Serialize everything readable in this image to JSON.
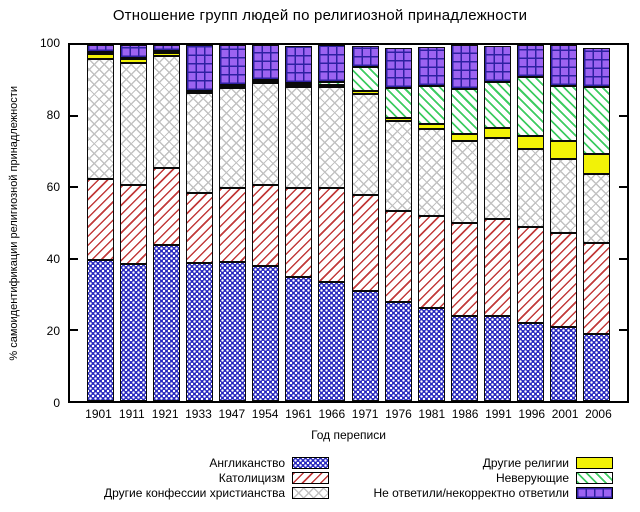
{
  "title": "Отношение групп людей по религиозной принадлежности",
  "y_axis": {
    "label": "% самоидентификации религиозной принадлежности",
    "ticks": [
      0,
      20,
      40,
      60,
      80,
      100
    ],
    "range": [
      0,
      100
    ]
  },
  "x_axis": {
    "label": "Год переписи"
  },
  "palette": {
    "anglican": {
      "fill": "#2626be",
      "accent": "#ffffff"
    },
    "catholic": {
      "fill": "#ffffff",
      "accent": "#c23b3b"
    },
    "other-christian": {
      "fill": "#ffffff",
      "accent": "#c2c2c2"
    },
    "other-religions": {
      "fill": "#f2f207",
      "accent": "#f2f207"
    },
    "no-religion": {
      "fill": "#ffffff",
      "accent": "#3ecc62"
    },
    "not-stated": {
      "fill": "#9c63f1",
      "accent": "#2e21a2"
    }
  },
  "legend": {
    "columns": [
      [
        "anglican",
        "catholic",
        "other-christian"
      ],
      [
        "other-religions",
        "no-religion",
        "not-stated"
      ]
    ]
  },
  "chart_data": {
    "type": "bar",
    "stacked": true,
    "title": "Отношение групп людей по религиозной принадлежности",
    "xlabel": "Год переписи",
    "ylabel": "% самоидентификации религиозной принадлежности",
    "ylim": [
      0,
      100
    ],
    "grid": false,
    "legend_position": "bottom",
    "categories": [
      "1901",
      "1911",
      "1921",
      "1933",
      "1947",
      "1954",
      "1961",
      "1966",
      "1971",
      "1976",
      "1981",
      "1986",
      "1991",
      "1996",
      "2001",
      "2006"
    ],
    "series": [
      {
        "key": "anglican",
        "name": "Англиканство",
        "values": [
          39.7,
          38.4,
          43.7,
          38.7,
          39.0,
          37.9,
          34.9,
          33.5,
          31.0,
          27.7,
          26.1,
          23.9,
          23.8,
          22.0,
          20.7,
          18.7
        ]
      },
      {
        "key": "catholic",
        "name": "Католицизм",
        "values": [
          22.7,
          22.4,
          21.7,
          19.6,
          20.9,
          22.9,
          24.9,
          26.2,
          27.0,
          25.7,
          26.0,
          26.0,
          27.3,
          27.0,
          26.6,
          25.8
        ]
      },
      {
        "key": "other-christian",
        "name": "Другие конфессии христианства",
        "values": [
          33.7,
          34.1,
          31.6,
          28.1,
          28.1,
          28.5,
          28.4,
          28.5,
          28.2,
          25.2,
          24.3,
          23.0,
          22.9,
          21.9,
          20.7,
          19.3
        ]
      },
      {
        "key": "other-religions",
        "name": "Другие религии",
        "values": [
          1.4,
          1.1,
          0.7,
          0.4,
          0.5,
          0.6,
          0.7,
          0.7,
          0.8,
          1.0,
          1.4,
          2.0,
          2.6,
          3.5,
          4.9,
          5.6
        ]
      },
      {
        "key": "no-religion",
        "name": "Неверующие",
        "values": [
          0.4,
          0.4,
          0.5,
          0.2,
          0.3,
          0.3,
          0.4,
          0.8,
          6.7,
          8.3,
          10.8,
          12.7,
          12.9,
          16.6,
          15.5,
          18.7
        ]
      },
      {
        "key": "not-stated",
        "name": "Не ответили/некорректно ответили",
        "values": [
          2.0,
          3.6,
          1.8,
          12.9,
          11.1,
          9.7,
          10.5,
          10.3,
          6.1,
          11.4,
          10.9,
          12.4,
          10.2,
          9.0,
          11.6,
          11.2
        ]
      }
    ]
  }
}
